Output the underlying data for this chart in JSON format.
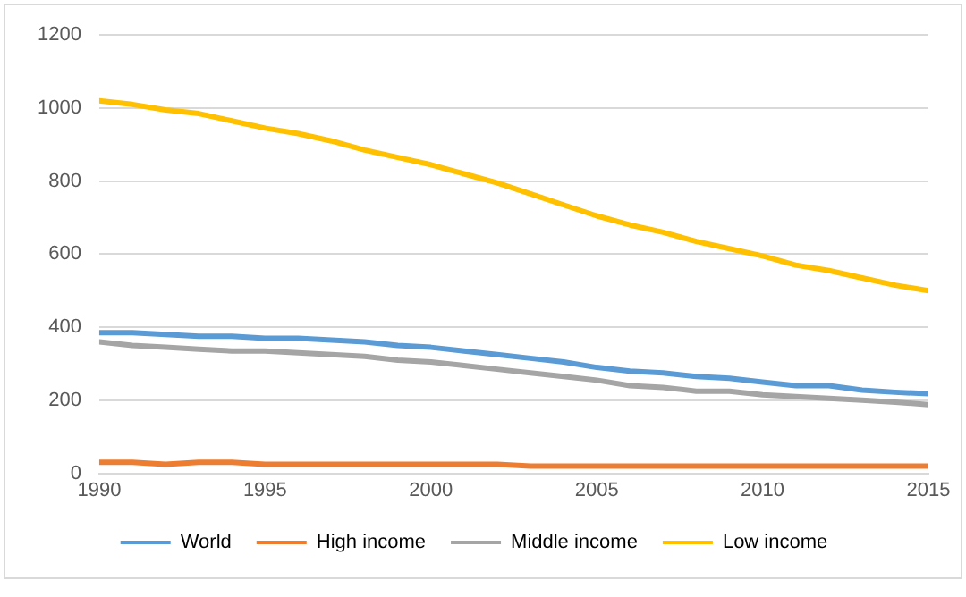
{
  "chart_data": {
    "type": "line",
    "x": [
      1990,
      1991,
      1992,
      1993,
      1994,
      1995,
      1996,
      1997,
      1998,
      1999,
      2000,
      2001,
      2002,
      2003,
      2004,
      2005,
      2006,
      2007,
      2008,
      2009,
      2010,
      2011,
      2012,
      2013,
      2014,
      2015
    ],
    "series": [
      {
        "name": "World",
        "color": "#5b9bd5",
        "values": [
          385,
          385,
          380,
          375,
          375,
          370,
          370,
          365,
          360,
          350,
          345,
          335,
          325,
          315,
          305,
          290,
          280,
          275,
          265,
          260,
          250,
          240,
          240,
          228,
          222,
          218
        ]
      },
      {
        "name": "High income",
        "color": "#ed7d31",
        "values": [
          30,
          30,
          25,
          30,
          30,
          25,
          25,
          25,
          25,
          25,
          25,
          25,
          25,
          20,
          20,
          20,
          20,
          20,
          20,
          20,
          20,
          20,
          20,
          20,
          20,
          20
        ]
      },
      {
        "name": "Middle income",
        "color": "#a5a5a5",
        "values": [
          360,
          350,
          345,
          340,
          335,
          335,
          330,
          325,
          320,
          310,
          305,
          295,
          285,
          275,
          265,
          255,
          240,
          235,
          225,
          225,
          215,
          210,
          205,
          200,
          195,
          188
        ]
      },
      {
        "name": "Low income",
        "color": "#ffc000",
        "values": [
          1020,
          1010,
          995,
          985,
          965,
          945,
          930,
          910,
          885,
          865,
          845,
          820,
          795,
          765,
          735,
          705,
          680,
          660,
          635,
          615,
          595,
          570,
          555,
          535,
          515,
          500
        ]
      }
    ],
    "xlim": [
      1990,
      2015
    ],
    "xticks": [
      1990,
      1995,
      2000,
      2005,
      2010,
      2015
    ],
    "ylim": [
      0,
      1200
    ],
    "yticks": [
      0,
      200,
      400,
      600,
      800,
      1000,
      1200
    ],
    "grid": "y",
    "legend": "bottom",
    "marker": "none",
    "line_style": "solid"
  }
}
